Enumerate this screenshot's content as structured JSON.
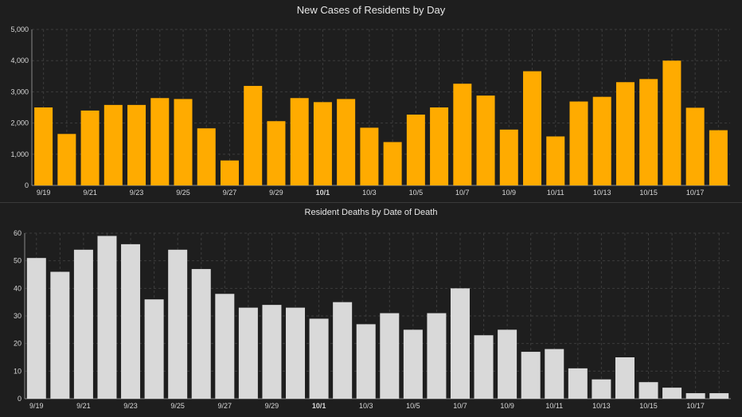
{
  "colors": {
    "background": "#1e1e1e",
    "cases_bar": "#ffab00",
    "deaths_bar": "#d9d9d9",
    "grid": "#3c3c3c",
    "text": "#d8d8d8"
  },
  "chart_data": [
    {
      "type": "bar",
      "title": "New Cases of Residents by Day",
      "xlabel": "",
      "ylabel": "",
      "ylim": [
        0,
        5000
      ],
      "yticks": [
        "0",
        "1,000",
        "2,000",
        "3,000",
        "4,000",
        "5,000"
      ],
      "ytick_values": [
        0,
        1000,
        2000,
        3000,
        4000,
        5000
      ],
      "grid": true,
      "categories": [
        "9/19",
        "9/20",
        "9/21",
        "9/22",
        "9/23",
        "9/24",
        "9/25",
        "9/26",
        "9/27",
        "9/28",
        "9/29",
        "9/30",
        "10/1",
        "10/2",
        "10/3",
        "10/4",
        "10/5",
        "10/6",
        "10/7",
        "10/8",
        "10/9",
        "10/10",
        "10/11",
        "10/12",
        "10/13",
        "10/14",
        "10/15",
        "10/16",
        "10/17",
        "10/18"
      ],
      "xtick_labels": [
        "9/19",
        "9/21",
        "9/23",
        "9/25",
        "9/27",
        "9/29",
        "10/1",
        "10/3",
        "10/5",
        "10/7",
        "10/9",
        "10/11",
        "10/13",
        "10/15",
        "10/17"
      ],
      "bold_tick": "10/1",
      "values": [
        2500,
        1650,
        2400,
        2580,
        2580,
        2800,
        2770,
        1830,
        800,
        3190,
        2060,
        2800,
        2670,
        2770,
        1850,
        1390,
        2270,
        2500,
        3260,
        2880,
        1790,
        3660,
        1570,
        2690,
        2840,
        3310,
        3410,
        4000,
        2490,
        1770
      ]
    },
    {
      "type": "bar",
      "title": "Resident Deaths by Date of Death",
      "xlabel": "",
      "ylabel": "",
      "ylim": [
        0,
        60
      ],
      "yticks": [
        "0",
        "10",
        "20",
        "30",
        "40",
        "50",
        "60"
      ],
      "ytick_values": [
        0,
        10,
        20,
        30,
        40,
        50,
        60
      ],
      "grid": true,
      "categories": [
        "9/19",
        "9/20",
        "9/21",
        "9/22",
        "9/23",
        "9/24",
        "9/25",
        "9/26",
        "9/27",
        "9/28",
        "9/29",
        "9/30",
        "10/1",
        "10/2",
        "10/3",
        "10/4",
        "10/5",
        "10/6",
        "10/7",
        "10/8",
        "10/9",
        "10/10",
        "10/11",
        "10/12",
        "10/13",
        "10/14",
        "10/15",
        "10/16",
        "10/17",
        "10/18"
      ],
      "xtick_labels": [
        "9/19",
        "9/21",
        "9/23",
        "9/25",
        "9/27",
        "9/29",
        "10/1",
        "10/3",
        "10/5",
        "10/7",
        "10/9",
        "10/11",
        "10/13",
        "10/15",
        "10/17"
      ],
      "bold_tick": "10/1",
      "values": [
        51,
        46,
        54,
        59,
        56,
        36,
        54,
        47,
        38,
        33,
        34,
        33,
        29,
        35,
        27,
        31,
        25,
        31,
        40,
        23,
        25,
        17,
        18,
        11,
        7,
        15,
        6,
        4,
        2,
        2
      ]
    }
  ]
}
